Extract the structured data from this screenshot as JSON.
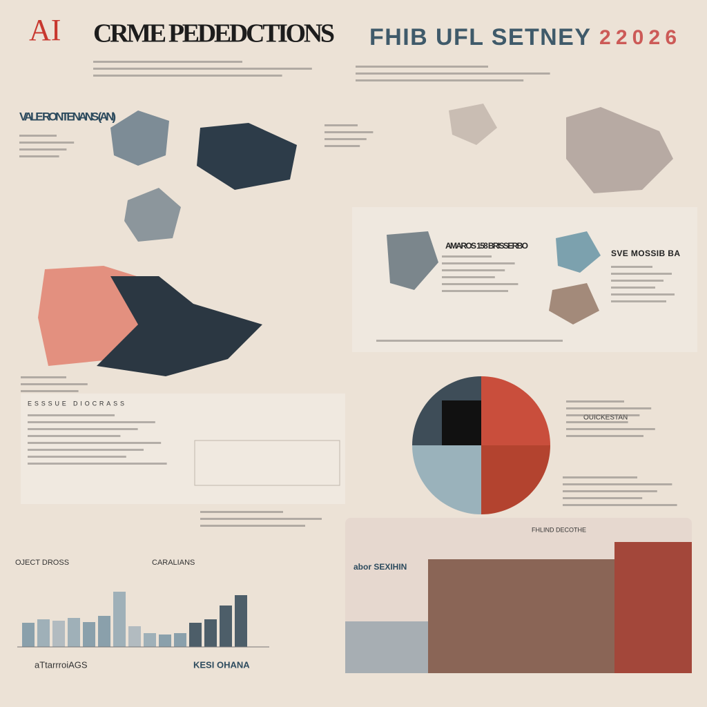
{
  "header": {
    "logo": "AI",
    "title": "CRME PEDEDCTIONS",
    "subtitle": "FHIB UFL SETNEY",
    "year": "22026"
  },
  "map_section": {
    "heading": "VALE RONTENANS (AN)"
  },
  "right_panel": {
    "heading": "AMAROS 158 BRISSERBO",
    "side_heading": "SVE MOSSIB BA"
  },
  "table_section": {
    "heading": "ESSSUE DIOCRASS"
  },
  "pie_section": {
    "label": "OUICKESTAN"
  },
  "photo_section": {
    "heading": "abor SEXIHIN",
    "caption": "FHLIND DECOTHE"
  },
  "bar_section": {
    "heading_left": "OJECT DROSS",
    "heading_right": "CARALIANS",
    "footer_left": "aTtarrroiAGS",
    "footer_right": "KESI OHANA"
  }
}
